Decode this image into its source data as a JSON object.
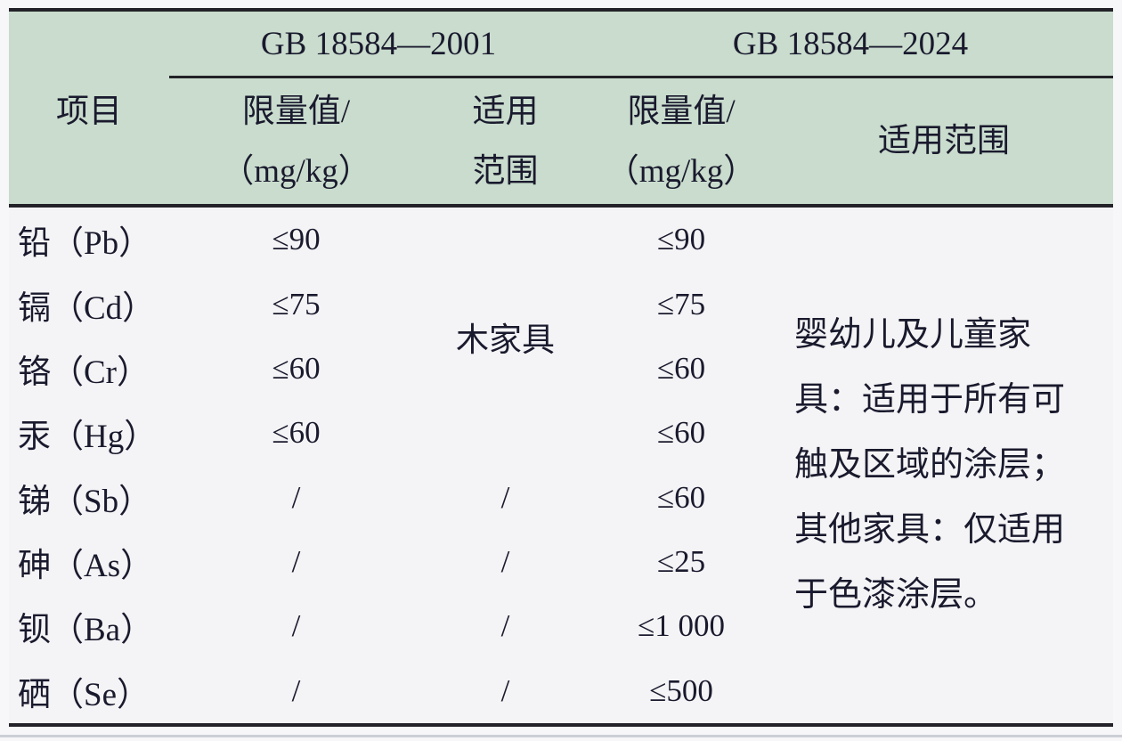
{
  "table": {
    "item_header": "项目",
    "standards": [
      {
        "name": "GB 18584—2001",
        "limit_header": [
          "限量值/",
          "（mg/kg）"
        ],
        "scope_header": [
          "适用",
          "范围"
        ]
      },
      {
        "name": "GB 18584—2024",
        "limit_header": [
          "限量值/",
          "（mg/kg）"
        ],
        "scope_header": [
          "适用范围"
        ]
      }
    ],
    "rows": [
      {
        "item": "铅（Pb）",
        "limit_2001": "≤90",
        "scope_2001": "",
        "limit_2024": "≤90"
      },
      {
        "item": "镉（Cd）",
        "limit_2001": "≤75",
        "scope_2001": "",
        "limit_2024": "≤75"
      },
      {
        "item": "铬（Cr）",
        "limit_2001": "≤60",
        "scope_2001": "",
        "limit_2024": "≤60"
      },
      {
        "item": "汞（Hg）",
        "limit_2001": "≤60",
        "scope_2001": "",
        "limit_2024": "≤60"
      },
      {
        "item": "锑（Sb）",
        "limit_2001": "/",
        "scope_2001": "/",
        "limit_2024": "≤60"
      },
      {
        "item": "砷（As）",
        "limit_2001": "/",
        "scope_2001": "/",
        "limit_2024": "≤25"
      },
      {
        "item": "钡（Ba）",
        "limit_2001": "/",
        "scope_2001": "/",
        "limit_2024": "≤1 000"
      },
      {
        "item": "硒（Se）",
        "limit_2001": "/",
        "scope_2001": "/",
        "limit_2024": "≤500"
      }
    ],
    "scope_2001_merged": "木家具",
    "scope_2024_lines": [
      "婴幼儿及儿童家",
      "具：适用于所有可",
      "触及区域的涂层；",
      "其他家具：仅适用",
      "于色漆涂层。"
    ]
  },
  "colors": {
    "header_bg": "#c9dccd",
    "body_bg": "#f4f4f6",
    "text": "#1a1a2e",
    "rule_line": "#222228"
  }
}
